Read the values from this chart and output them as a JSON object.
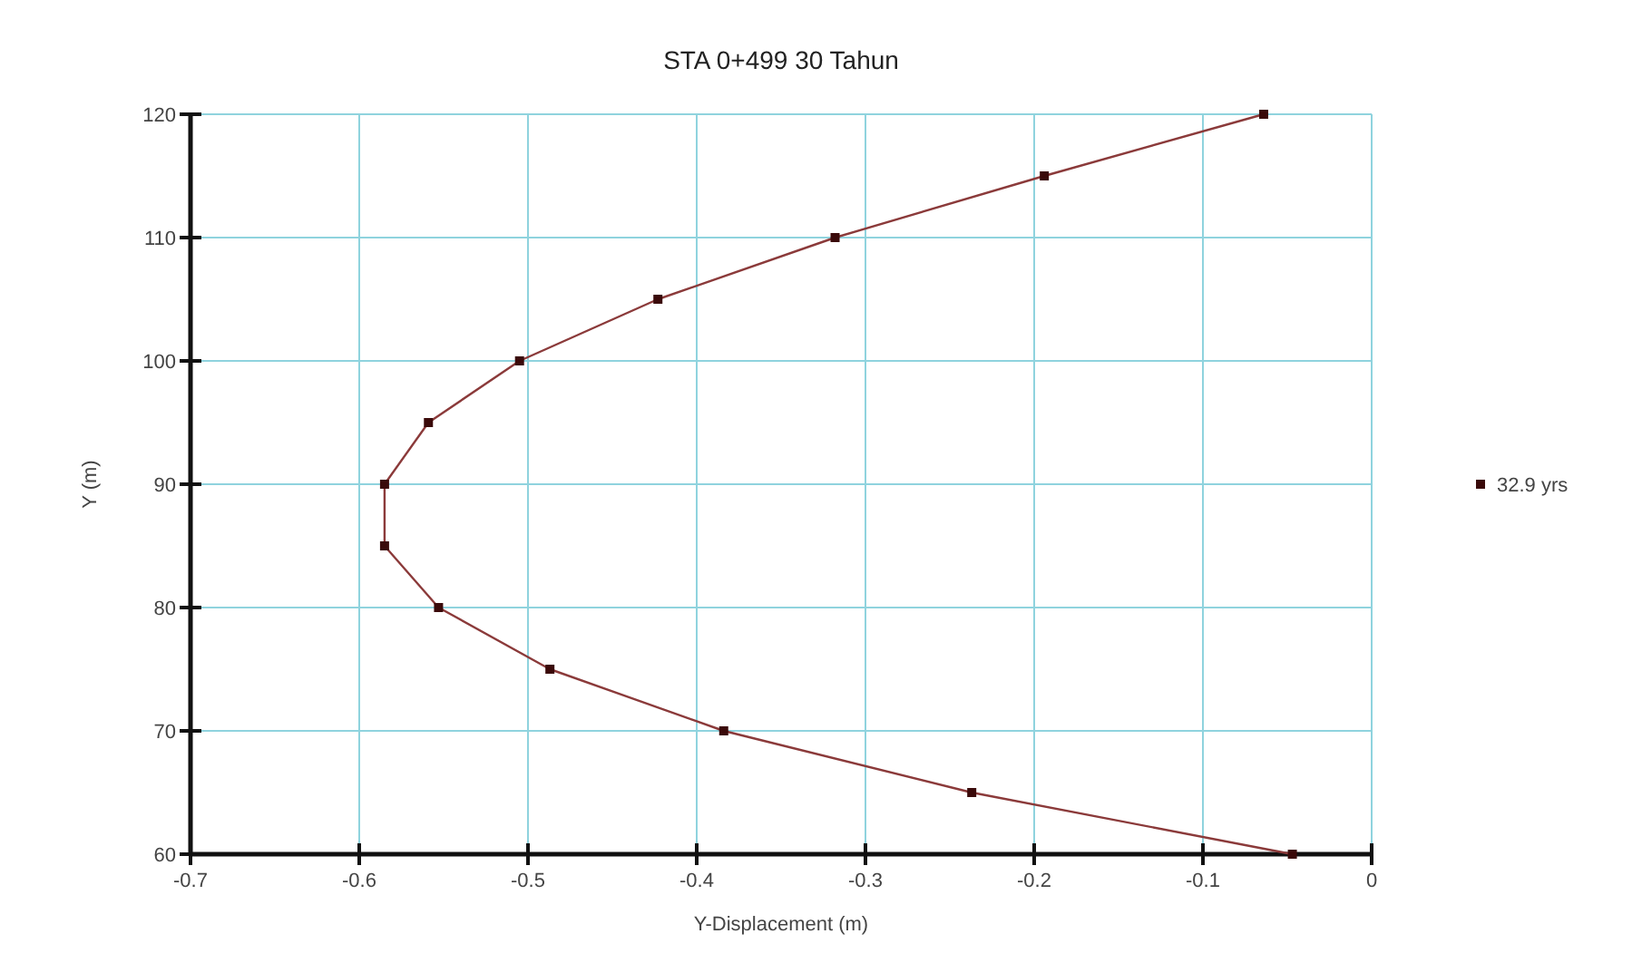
{
  "chart_data": {
    "type": "line",
    "title": "STA 0+499 30 Tahun",
    "xlabel": "Y-Displacement (m)",
    "ylabel": "Y (m)",
    "series": [
      {
        "name": "32.9 yrs",
        "color": "#8b3a3a",
        "x": [
          -0.047,
          -0.237,
          -0.384,
          -0.487,
          -0.553,
          -0.585,
          -0.585,
          -0.559,
          -0.505,
          -0.423,
          -0.318,
          -0.194,
          -0.064
        ],
        "values": [
          60,
          65,
          70,
          75,
          80,
          85,
          90,
          95,
          100,
          105,
          110,
          115,
          120
        ]
      }
    ],
    "xlim": [
      -0.7,
      0
    ],
    "xticks": [
      -0.7,
      -0.6,
      -0.5,
      -0.4,
      -0.3,
      -0.2,
      -0.1,
      0
    ],
    "ylim": [
      60,
      120
    ],
    "yticks": [
      60,
      70,
      80,
      90,
      100,
      110,
      120
    ],
    "grid": true,
    "legend": "right",
    "marker": "square",
    "line_style": "solid"
  }
}
